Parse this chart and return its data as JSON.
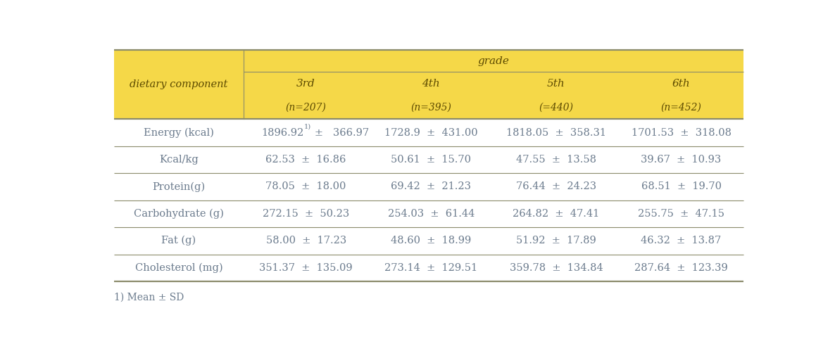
{
  "header_bg_color": "#F5D848",
  "header_text_color": "#5C4A00",
  "body_text_color": "#6B7B8D",
  "line_color": "#8B8B6B",
  "background_color": "#FFFFFF",
  "grade_label": "grade",
  "col0_label": "dietary component",
  "columns": [
    {
      "label": "3rd",
      "sublabel": "(n=207)"
    },
    {
      "label": "4th",
      "sublabel": "(n=395)"
    },
    {
      "label": "5th",
      "sublabel": "(=440)"
    },
    {
      "label": "6th",
      "sublabel": "(n=452)"
    }
  ],
  "rows": [
    {
      "name": "Energy (kcal)",
      "values": [
        {
          "mean": "1896.92",
          "sd": "366.97",
          "superscript": "1)"
        },
        {
          "mean": "1728.9",
          "sd": "431.00",
          "superscript": ""
        },
        {
          "mean": "1818.05",
          "sd": "358.31",
          "superscript": ""
        },
        {
          "mean": "1701.53",
          "sd": "318.08",
          "superscript": ""
        }
      ]
    },
    {
      "name": "Kcal/kg",
      "values": [
        {
          "mean": "62.53",
          "sd": "16.86",
          "superscript": ""
        },
        {
          "mean": "50.61",
          "sd": "15.70",
          "superscript": ""
        },
        {
          "mean": "47.55",
          "sd": "13.58",
          "superscript": ""
        },
        {
          "mean": "39.67",
          "sd": "10.93",
          "superscript": ""
        }
      ]
    },
    {
      "name": "Protein(g)",
      "values": [
        {
          "mean": "78.05",
          "sd": "18.00",
          "superscript": ""
        },
        {
          "mean": "69.42",
          "sd": "21.23",
          "superscript": ""
        },
        {
          "mean": "76.44",
          "sd": "24.23",
          "superscript": ""
        },
        {
          "mean": "68.51",
          "sd": "19.70",
          "superscript": ""
        }
      ]
    },
    {
      "name": "Carbohydrate (g)",
      "values": [
        {
          "mean": "272.15",
          "sd": "50.23",
          "superscript": ""
        },
        {
          "mean": "254.03",
          "sd": "61.44",
          "superscript": ""
        },
        {
          "mean": "264.82",
          "sd": "47.41",
          "superscript": ""
        },
        {
          "mean": "255.75",
          "sd": "47.15",
          "superscript": ""
        }
      ]
    },
    {
      "name": "Fat (g)",
      "values": [
        {
          "mean": "58.00",
          "sd": "17.23",
          "superscript": ""
        },
        {
          "mean": "48.60",
          "sd": "18.99",
          "superscript": ""
        },
        {
          "mean": "51.92",
          "sd": "17.89",
          "superscript": ""
        },
        {
          "mean": "46.32",
          "sd": "13.87",
          "superscript": ""
        }
      ]
    },
    {
      "name": "Cholesterol (mg)",
      "values": [
        {
          "mean": "351.37",
          "sd": "135.09",
          "superscript": ""
        },
        {
          "mean": "273.14",
          "sd": "129.51",
          "superscript": ""
        },
        {
          "mean": "359.78",
          "sd": "134.84",
          "superscript": ""
        },
        {
          "mean": "287.64",
          "sd": "123.39",
          "superscript": ""
        }
      ]
    }
  ],
  "footnote": "1) Mean ± SD",
  "fig_width": 11.86,
  "fig_height": 4.99,
  "dpi": 100
}
